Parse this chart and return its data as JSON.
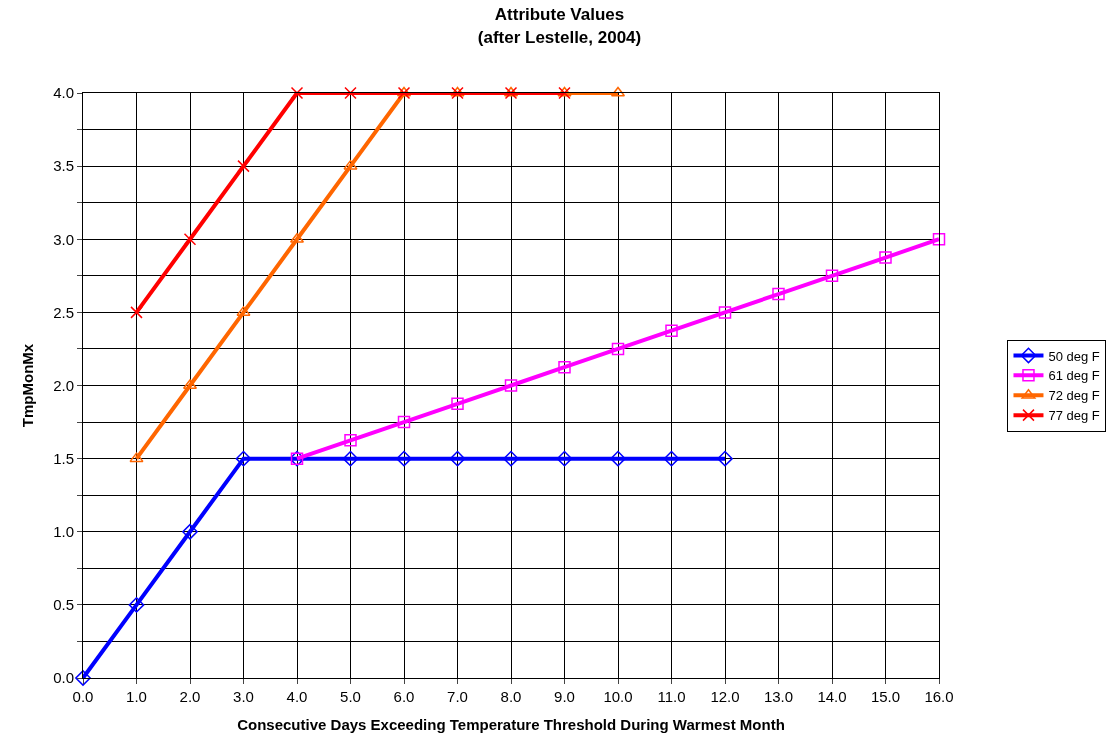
{
  "chart_data": {
    "type": "line",
    "title": "Attribute Values\n(after Lestelle, 2004)",
    "xlabel": "Consecutive Days Exceeding Temperature Threshold During Warmest Month",
    "ylabel": "TmpMonMx",
    "xlim": [
      0,
      16
    ],
    "ylim": [
      0,
      4
    ],
    "xticks": [
      {
        "value": 0,
        "label": "0.0"
      },
      {
        "value": 1,
        "label": "1.0"
      },
      {
        "value": 2,
        "label": "2.0"
      },
      {
        "value": 3,
        "label": "3.0"
      },
      {
        "value": 4,
        "label": "4.0"
      },
      {
        "value": 5,
        "label": "5.0"
      },
      {
        "value": 6,
        "label": "6.0"
      },
      {
        "value": 7,
        "label": "7.0"
      },
      {
        "value": 8,
        "label": "8.0"
      },
      {
        "value": 9,
        "label": "9.0"
      },
      {
        "value": 10,
        "label": "10.0"
      },
      {
        "value": 11,
        "label": "11.0"
      },
      {
        "value": 12,
        "label": "12.0"
      },
      {
        "value": 13,
        "label": "13.0"
      },
      {
        "value": 14,
        "label": "14.0"
      },
      {
        "value": 15,
        "label": "15.0"
      },
      {
        "value": 16,
        "label": "16.0"
      }
    ],
    "yticks": [
      {
        "value": 0,
        "label": "0.0"
      },
      {
        "value": 0.25,
        "label": null
      },
      {
        "value": 0.5,
        "label": "0.5"
      },
      {
        "value": 0.75,
        "label": null
      },
      {
        "value": 1,
        "label": "1.0"
      },
      {
        "value": 1.25,
        "label": null
      },
      {
        "value": 1.5,
        "label": "1.5"
      },
      {
        "value": 1.75,
        "label": null
      },
      {
        "value": 2,
        "label": "2.0"
      },
      {
        "value": 2.25,
        "label": null
      },
      {
        "value": 2.5,
        "label": "2.5"
      },
      {
        "value": 2.75,
        "label": null
      },
      {
        "value": 3,
        "label": "3.0"
      },
      {
        "value": 3.25,
        "label": null
      },
      {
        "value": 3.5,
        "label": "3.5"
      },
      {
        "value": 3.75,
        "label": null
      },
      {
        "value": 4,
        "label": "4.0"
      }
    ],
    "grid": true,
    "legend": "right",
    "series": [
      {
        "name": "50 deg F",
        "color": "#0000ff",
        "marker": "diamond",
        "x": [
          0,
          1,
          2,
          3,
          4,
          5,
          6,
          7,
          8,
          9,
          10,
          11,
          12
        ],
        "values": [
          0,
          0.5,
          1,
          1.5,
          1.5,
          1.5,
          1.5,
          1.5,
          1.5,
          1.5,
          1.5,
          1.5,
          1.5
        ]
      },
      {
        "name": "61 deg F",
        "color": "#ff00ff",
        "marker": "square",
        "x": [
          4,
          5,
          6,
          7,
          8,
          9,
          10,
          11,
          12,
          13,
          14,
          15,
          16
        ],
        "values": [
          1.5,
          1.625,
          1.75,
          1.875,
          2,
          2.125,
          2.25,
          2.375,
          2.5,
          2.625,
          2.75,
          2.875,
          3
        ]
      },
      {
        "name": "72 deg F",
        "color": "#ff6600",
        "marker": "triangle",
        "x": [
          1,
          2,
          3,
          4,
          5,
          6,
          7,
          8,
          9,
          10
        ],
        "values": [
          1.5,
          2,
          2.5,
          3,
          3.5,
          4,
          4,
          4,
          4,
          4
        ]
      },
      {
        "name": "77 deg F",
        "color": "#ff0000",
        "marker": "cross",
        "x": [
          1,
          2,
          3,
          4,
          5,
          6,
          7,
          8,
          9
        ],
        "values": [
          2.5,
          3,
          3.5,
          4,
          4,
          4,
          4,
          4,
          4
        ]
      }
    ]
  }
}
